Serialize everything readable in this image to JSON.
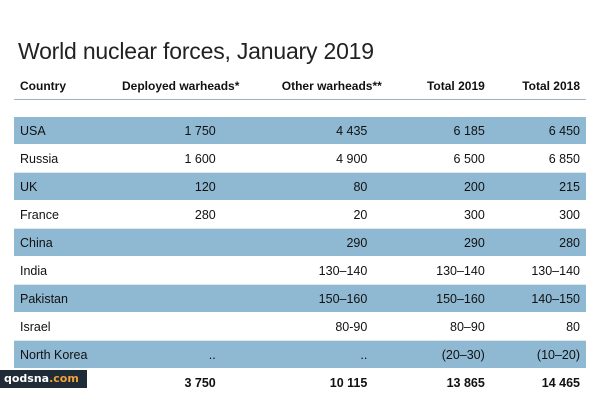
{
  "chart_data": {
    "type": "table",
    "title": "World nuclear forces, January 2019",
    "columns": [
      "Country",
      "Deployed warheads*",
      "Other warheads**",
      "Total 2019",
      "Total 2018"
    ],
    "rows": [
      {
        "country": "USA",
        "deployed": "1 750",
        "other": "4 435",
        "total2019": "6 185",
        "total2018": "6 450"
      },
      {
        "country": "Russia",
        "deployed": "1 600",
        "other": "4 900",
        "total2019": "6 500",
        "total2018": "6 850"
      },
      {
        "country": "UK",
        "deployed": "120",
        "other": "80",
        "total2019": "200",
        "total2018": "215"
      },
      {
        "country": "France",
        "deployed": "280",
        "other": "20",
        "total2019": "300",
        "total2018": "300"
      },
      {
        "country": "China",
        "deployed": "",
        "other": "290",
        "total2019": "290",
        "total2018": "280"
      },
      {
        "country": "India",
        "deployed": "",
        "other": "130–140",
        "total2019": "130–140",
        "total2018": "130–140"
      },
      {
        "country": "Pakistan",
        "deployed": "",
        "other": "150–160",
        "total2019": "150–160",
        "total2018": "140–150"
      },
      {
        "country": "Israel",
        "deployed": "",
        "other": "80-90",
        "total2019": "80–90",
        "total2018": "80"
      },
      {
        "country": "North Korea",
        "deployed": "..",
        "other": "..",
        "total2019": "(20–30)",
        "total2018": "(10–20)"
      }
    ],
    "total": {
      "country": "Total",
      "deployed": "3 750",
      "other": "10 115",
      "total2019": "13 865",
      "total2018": "14 465"
    },
    "band_color": "#8fb9d3"
  },
  "watermark": {
    "part1": "qodsna",
    "part2": ".com"
  }
}
